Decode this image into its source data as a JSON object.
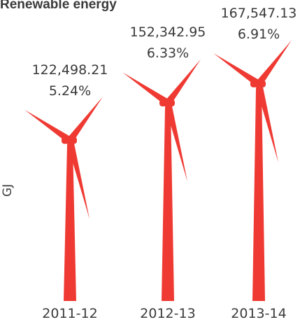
{
  "chart_data": {
    "type": "bar",
    "title": "Renewable energy",
    "ylabel": "GJ",
    "xlabel": "",
    "categories": [
      "2011-12",
      "2012-13",
      "2013-14"
    ],
    "values": [
      122498.21,
      152342.95,
      167547.13
    ],
    "value_labels": [
      "122,498.21",
      "152,342.95",
      "167,547.13"
    ],
    "percentages": [
      "5.24%",
      "6.33%",
      "6.91%"
    ],
    "mark": "wind-turbine",
    "color": "#ef3a33"
  }
}
